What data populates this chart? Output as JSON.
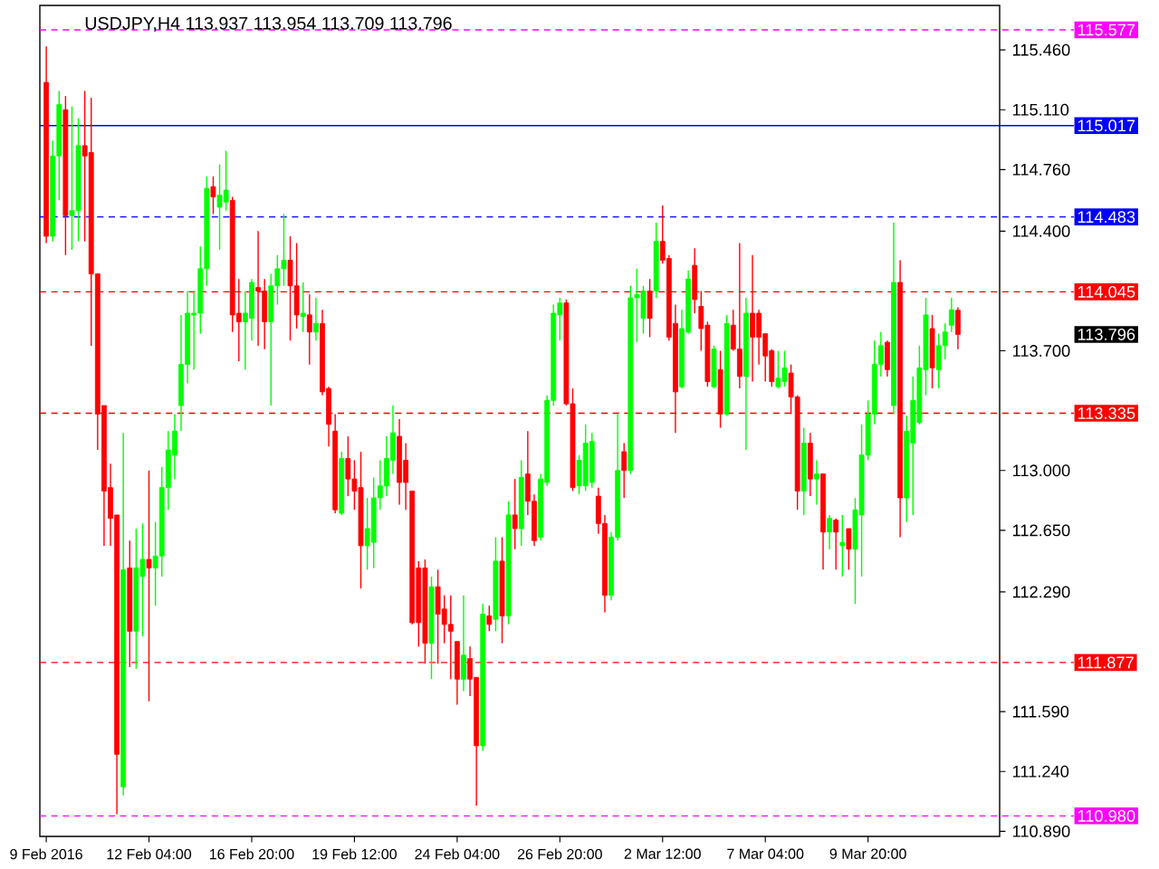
{
  "chart_data": {
    "type": "candlestick",
    "title": "USDJPY,H4  113.937 113.954 113.709 113.796",
    "categories": [
      "9 Feb 2016",
      null,
      null,
      null,
      null,
      null,
      null,
      null,
      null,
      null,
      null,
      null,
      null,
      null,
      null,
      null,
      "12 Feb 04:00",
      null,
      null,
      null,
      null,
      null,
      null,
      null,
      null,
      null,
      null,
      null,
      null,
      null,
      null,
      null,
      "16 Feb 20:00",
      null,
      null,
      null,
      null,
      null,
      null,
      null,
      null,
      null,
      null,
      null,
      null,
      null,
      null,
      null,
      "19 Feb 12:00",
      null,
      null,
      null,
      null,
      null,
      null,
      null,
      null,
      null,
      null,
      null,
      null,
      null,
      null,
      null,
      "24 Feb 04:00",
      null,
      null,
      null,
      null,
      null,
      null,
      null,
      null,
      null,
      null,
      null,
      null,
      null,
      null,
      null,
      "26 Feb 20:00",
      null,
      null,
      null,
      null,
      null,
      null,
      null,
      null,
      null,
      null,
      null,
      null,
      null,
      null,
      null,
      "2 Mar 12:00",
      null,
      null,
      null,
      null,
      null,
      null,
      null,
      null,
      null,
      null,
      null,
      null,
      null,
      null,
      null,
      "7 Mar 04:00",
      null,
      null,
      null,
      null,
      null,
      null,
      null,
      null,
      null,
      null,
      null,
      null,
      null,
      null,
      null,
      "9 Mar 20:00",
      null,
      null,
      null,
      null,
      null,
      null,
      null,
      null,
      null,
      null,
      null,
      null,
      null,
      null
    ],
    "ohlc": [
      [
        115.27,
        115.48,
        114.33,
        114.37
      ],
      [
        114.37,
        114.93,
        114.34,
        114.84
      ],
      [
        114.84,
        115.22,
        114.58,
        115.14
      ],
      [
        115.11,
        115.19,
        114.26,
        114.49
      ],
      [
        114.49,
        115.13,
        114.29,
        114.52
      ],
      [
        114.52,
        115.06,
        114.34,
        114.9
      ],
      [
        114.9,
        115.22,
        114.34,
        114.84
      ],
      [
        114.86,
        115.18,
        113.73,
        114.15
      ],
      [
        114.15,
        114.15,
        113.12,
        113.33
      ],
      [
        113.38,
        113.38,
        112.56,
        112.88
      ],
      [
        112.9,
        113.04,
        112.56,
        112.72
      ],
      [
        112.74,
        112.74,
        110.99,
        111.34
      ],
      [
        111.15,
        113.22,
        111.1,
        112.42
      ],
      [
        112.43,
        112.59,
        111.85,
        112.06
      ],
      [
        112.06,
        112.66,
        111.84,
        112.43
      ],
      [
        112.38,
        112.69,
        112.03,
        112.48
      ],
      [
        112.48,
        113.0,
        111.65,
        112.43
      ],
      [
        112.43,
        112.7,
        112.21,
        112.5
      ],
      [
        112.5,
        113.02,
        112.38,
        112.9
      ],
      [
        112.9,
        113.23,
        112.77,
        113.12
      ],
      [
        113.09,
        113.33,
        112.95,
        113.23
      ],
      [
        113.38,
        113.91,
        113.23,
        113.62
      ],
      [
        113.62,
        114.05,
        113.51,
        113.92
      ],
      [
        113.91,
        114.05,
        113.59,
        113.92
      ],
      [
        113.92,
        114.31,
        113.8,
        114.18
      ],
      [
        114.18,
        114.72,
        114.08,
        114.65
      ],
      [
        114.66,
        114.72,
        114.5,
        114.6
      ],
      [
        114.54,
        114.79,
        114.29,
        114.61
      ],
      [
        114.57,
        114.87,
        114.52,
        114.64
      ],
      [
        114.58,
        114.6,
        113.81,
        113.91
      ],
      [
        113.92,
        114.12,
        113.64,
        113.87
      ],
      [
        113.87,
        114.05,
        113.59,
        113.92
      ],
      [
        113.89,
        114.12,
        113.76,
        114.1
      ],
      [
        114.07,
        114.4,
        113.73,
        114.05
      ],
      [
        114.05,
        114.12,
        113.71,
        113.87
      ],
      [
        113.87,
        114.15,
        113.38,
        114.08
      ],
      [
        114.08,
        114.26,
        113.97,
        114.18
      ],
      [
        114.18,
        114.5,
        114.08,
        114.23
      ],
      [
        114.23,
        114.37,
        113.76,
        114.08
      ],
      [
        114.08,
        114.33,
        113.83,
        113.91
      ],
      [
        113.9,
        114.1,
        113.81,
        113.92
      ],
      [
        113.91,
        114.03,
        113.62,
        113.81
      ],
      [
        113.81,
        114.01,
        113.76,
        113.86
      ],
      [
        113.86,
        113.94,
        113.44,
        113.46
      ],
      [
        113.48,
        113.49,
        113.14,
        113.27
      ],
      [
        113.23,
        113.33,
        112.75,
        112.77
      ],
      [
        112.75,
        113.11,
        112.74,
        113.07
      ],
      [
        113.07,
        113.2,
        112.85,
        112.95
      ],
      [
        112.95,
        113.06,
        112.77,
        112.88
      ],
      [
        112.9,
        113.11,
        112.31,
        112.56
      ],
      [
        112.56,
        112.84,
        112.42,
        112.66
      ],
      [
        112.58,
        112.96,
        112.43,
        112.84
      ],
      [
        112.84,
        113.06,
        112.77,
        112.91
      ],
      [
        112.91,
        113.2,
        112.85,
        113.07
      ],
      [
        113.06,
        113.38,
        112.98,
        113.22
      ],
      [
        113.2,
        113.3,
        112.8,
        112.93
      ],
      [
        113.06,
        113.16,
        112.77,
        112.93
      ],
      [
        112.88,
        112.88,
        112.1,
        112.11
      ],
      [
        112.43,
        112.47,
        111.97,
        112.11
      ],
      [
        112.43,
        112.48,
        111.87,
        111.99
      ],
      [
        111.99,
        112.38,
        111.78,
        112.32
      ],
      [
        112.32,
        112.42,
        111.87,
        112.16
      ],
      [
        112.19,
        112.27,
        111.99,
        112.1
      ],
      [
        112.1,
        112.27,
        111.78,
        112.06
      ],
      [
        112.0,
        112.0,
        111.63,
        111.78
      ],
      [
        111.78,
        112.27,
        111.71,
        111.92
      ],
      [
        111.9,
        111.97,
        111.68,
        111.78
      ],
      [
        111.79,
        111.79,
        111.04,
        111.39
      ],
      [
        111.39,
        112.22,
        111.36,
        112.16
      ],
      [
        112.15,
        112.21,
        112.06,
        112.1
      ],
      [
        112.13,
        112.61,
        112.06,
        112.47
      ],
      [
        112.47,
        112.61,
        111.99,
        112.15
      ],
      [
        112.15,
        112.82,
        112.1,
        112.74
      ],
      [
        112.74,
        112.95,
        112.54,
        112.66
      ],
      [
        112.66,
        113.06,
        112.56,
        112.96
      ],
      [
        112.98,
        113.23,
        112.74,
        112.82
      ],
      [
        112.82,
        112.86,
        112.56,
        112.59
      ],
      [
        112.61,
        112.98,
        112.59,
        112.95
      ],
      [
        112.93,
        113.44,
        112.91,
        113.41
      ],
      [
        113.41,
        113.97,
        113.38,
        113.92
      ],
      [
        113.91,
        114.01,
        113.76,
        113.98
      ],
      [
        113.98,
        114.0,
        113.38,
        113.39
      ],
      [
        113.39,
        113.48,
        112.88,
        112.9
      ],
      [
        112.91,
        113.09,
        112.86,
        113.06
      ],
      [
        112.91,
        113.27,
        112.88,
        113.16
      ],
      [
        112.93,
        113.22,
        112.9,
        113.17
      ],
      [
        112.85,
        112.9,
        112.63,
        112.69
      ],
      [
        112.69,
        112.74,
        112.17,
        112.27
      ],
      [
        112.27,
        112.64,
        112.24,
        112.61
      ],
      [
        112.61,
        113.33,
        112.59,
        113.0
      ],
      [
        113.11,
        113.16,
        112.84,
        113.0
      ],
      [
        113.0,
        114.08,
        112.98,
        114.01
      ],
      [
        114.01,
        114.18,
        113.75,
        114.03
      ],
      [
        113.89,
        114.08,
        113.8,
        114.05
      ],
      [
        114.05,
        114.12,
        113.78,
        113.89
      ],
      [
        114.05,
        114.45,
        114.01,
        114.34
      ],
      [
        114.34,
        114.55,
        114.21,
        114.23
      ],
      [
        114.24,
        114.26,
        113.76,
        113.78
      ],
      [
        113.86,
        113.97,
        113.22,
        113.46
      ],
      [
        113.49,
        113.94,
        113.48,
        113.83
      ],
      [
        113.81,
        114.17,
        113.8,
        114.12
      ],
      [
        114.2,
        114.3,
        113.92,
        114.0
      ],
      [
        113.96,
        114.05,
        113.7,
        113.83
      ],
      [
        113.85,
        113.87,
        113.49,
        113.52
      ],
      [
        113.49,
        113.73,
        113.48,
        113.71
      ],
      [
        113.59,
        113.7,
        113.25,
        113.33
      ],
      [
        113.33,
        113.91,
        113.32,
        113.86
      ],
      [
        113.85,
        113.94,
        113.7,
        113.71
      ],
      [
        113.71,
        114.33,
        113.48,
        113.55
      ],
      [
        113.55,
        114.01,
        113.12,
        113.92
      ],
      [
        113.92,
        114.26,
        113.52,
        113.78
      ],
      [
        113.92,
        113.94,
        113.62,
        113.78
      ],
      [
        113.8,
        113.8,
        113.52,
        113.67
      ],
      [
        113.7,
        113.71,
        113.49,
        113.52
      ],
      [
        113.49,
        113.7,
        113.48,
        113.54
      ],
      [
        113.52,
        113.7,
        113.49,
        113.6
      ],
      [
        113.57,
        113.62,
        113.33,
        113.43
      ],
      [
        113.43,
        113.44,
        112.77,
        112.88
      ],
      [
        112.88,
        113.25,
        112.74,
        113.16
      ],
      [
        113.16,
        113.22,
        112.85,
        112.95
      ],
      [
        112.95,
        113.06,
        112.8,
        112.98
      ],
      [
        112.98,
        112.98,
        112.42,
        112.64
      ],
      [
        112.64,
        112.74,
        112.54,
        112.72
      ],
      [
        112.71,
        112.72,
        112.42,
        112.64
      ],
      [
        112.56,
        112.74,
        112.38,
        112.58
      ],
      [
        112.66,
        112.66,
        112.42,
        112.54
      ],
      [
        112.54,
        112.84,
        112.22,
        112.77
      ],
      [
        112.74,
        113.27,
        112.38,
        113.09
      ],
      [
        113.09,
        113.41,
        113.06,
        113.33
      ],
      [
        113.33,
        113.76,
        113.27,
        113.62
      ],
      [
        113.62,
        113.81,
        113.55,
        113.73
      ],
      [
        113.75,
        113.76,
        113.55,
        113.59
      ],
      [
        113.38,
        114.45,
        113.33,
        114.1
      ],
      [
        114.1,
        114.23,
        112.61,
        112.84
      ],
      [
        112.84,
        113.32,
        112.7,
        113.23
      ],
      [
        113.16,
        113.55,
        112.74,
        113.41
      ],
      [
        113.28,
        113.73,
        113.27,
        113.6
      ],
      [
        113.59,
        114.01,
        113.44,
        113.91
      ],
      [
        113.83,
        113.91,
        113.48,
        113.6
      ],
      [
        113.59,
        113.8,
        113.48,
        113.73
      ],
      [
        113.73,
        113.86,
        113.65,
        113.81
      ],
      [
        113.85,
        114.01,
        113.81,
        113.94
      ],
      [
        113.937,
        113.954,
        113.709,
        113.796
      ]
    ],
    "colors": [
      "#ff0000",
      "#00ff00",
      "#00ff00",
      "#ff0000",
      "#00ff00",
      "#00ff00",
      "#ff0000",
      "#ff0000",
      "#ff0000",
      "#ff0000",
      "#ff0000",
      "#ff0000",
      "#00ff00",
      "#ff0000",
      "#00ff00",
      "#00ff00",
      "#ff0000",
      "#00ff00",
      "#00ff00",
      "#00ff00",
      "#00ff00",
      "#00ff00",
      "#00ff00",
      "#00ff00",
      "#00ff00",
      "#00ff00",
      "#ff0000",
      "#00ff00",
      "#00ff00",
      "#ff0000",
      "#ff0000",
      "#00ff00",
      "#00ff00",
      "#ff0000",
      "#ff0000",
      "#00ff00",
      "#00ff00",
      "#00ff00",
      "#ff0000",
      "#ff0000",
      "#00ff00",
      "#ff0000",
      "#00ff00",
      "#ff0000",
      "#ff0000",
      "#ff0000",
      "#00ff00",
      "#ff0000",
      "#ff0000",
      "#ff0000",
      "#00ff00",
      "#00ff00",
      "#00ff00",
      "#00ff00",
      "#00ff00",
      "#ff0000",
      "#ff0000",
      "#ff0000",
      "#ff0000",
      "#ff0000",
      "#00ff00",
      "#ff0000",
      "#ff0000",
      "#ff0000",
      "#ff0000",
      "#00ff00",
      "#ff0000",
      "#ff0000",
      "#00ff00",
      "#ff0000",
      "#00ff00",
      "#ff0000",
      "#00ff00",
      "#ff0000",
      "#00ff00",
      "#ff0000",
      "#ff0000",
      "#00ff00",
      "#00ff00",
      "#00ff00",
      "#00ff00",
      "#ff0000",
      "#ff0000",
      "#00ff00",
      "#00ff00",
      "#00ff00",
      "#ff0000",
      "#ff0000",
      "#00ff00",
      "#00ff00",
      "#ff0000",
      "#00ff00",
      "#00ff00",
      "#00ff00",
      "#ff0000",
      "#00ff00",
      "#ff0000",
      "#ff0000",
      "#ff0000",
      "#00ff00",
      "#00ff00",
      "#ff0000",
      "#ff0000",
      "#ff0000",
      "#00ff00",
      "#ff0000",
      "#00ff00",
      "#ff0000",
      "#ff0000",
      "#00ff00",
      "#ff0000",
      "#ff0000",
      "#ff0000",
      "#ff0000",
      "#00ff00",
      "#00ff00",
      "#ff0000",
      "#ff0000",
      "#00ff00",
      "#ff0000",
      "#00ff00",
      "#ff0000",
      "#00ff00",
      "#ff0000",
      "#00ff00",
      "#ff0000",
      "#00ff00",
      "#00ff00",
      "#00ff00",
      "#00ff00",
      "#00ff00",
      "#ff0000",
      "#00ff00",
      "#ff0000",
      "#00ff00",
      "#00ff00",
      "#00ff00",
      "#00ff00",
      "#ff0000",
      "#00ff00",
      "#00ff00",
      "#00ff00",
      "#ff0000"
    ],
    "ylim": [
      110.86,
      115.72
    ],
    "yticks": [
      {
        "value": 110.89,
        "label": "110.890"
      },
      {
        "value": 111.24,
        "label": "111.240"
      },
      {
        "value": 111.59,
        "label": "111.590"
      },
      {
        "value": 112.29,
        "label": "112.290"
      },
      {
        "value": 112.65,
        "label": "112.650"
      },
      {
        "value": 113.0,
        "label": "113.000"
      },
      {
        "value": 113.7,
        "label": "113.700"
      },
      {
        "value": 114.4,
        "label": "114.400"
      },
      {
        "value": 114.76,
        "label": "114.760"
      },
      {
        "value": 115.11,
        "label": "115.110"
      },
      {
        "value": 115.46,
        "label": "115.460"
      }
    ],
    "ref_lines": [
      {
        "axis": "y",
        "value": 115.577,
        "label": "115.577",
        "color": "#ff00ff",
        "line_style": "dashed"
      },
      {
        "axis": "y",
        "value": 115.017,
        "label": "115.017",
        "color": "#0000ff",
        "line_style": "solid"
      },
      {
        "axis": "y",
        "value": 114.483,
        "label": "114.483",
        "color": "#0000ff",
        "line_style": "dashed"
      },
      {
        "axis": "y",
        "value": 114.045,
        "label": "114.045",
        "color": "#ff0000",
        "line_style": "dashed"
      },
      {
        "axis": "y",
        "value": 113.335,
        "label": "113.335",
        "color": "#ff0000",
        "line_style": "dashed"
      },
      {
        "axis": "y",
        "value": 111.877,
        "label": "111.877",
        "color": "#ff0000",
        "line_style": "dashed"
      },
      {
        "axis": "y",
        "value": 110.98,
        "label": "110.980",
        "color": "#ff00ff",
        "line_style": "dashed"
      }
    ],
    "annotations": [
      "113.796"
    ]
  }
}
